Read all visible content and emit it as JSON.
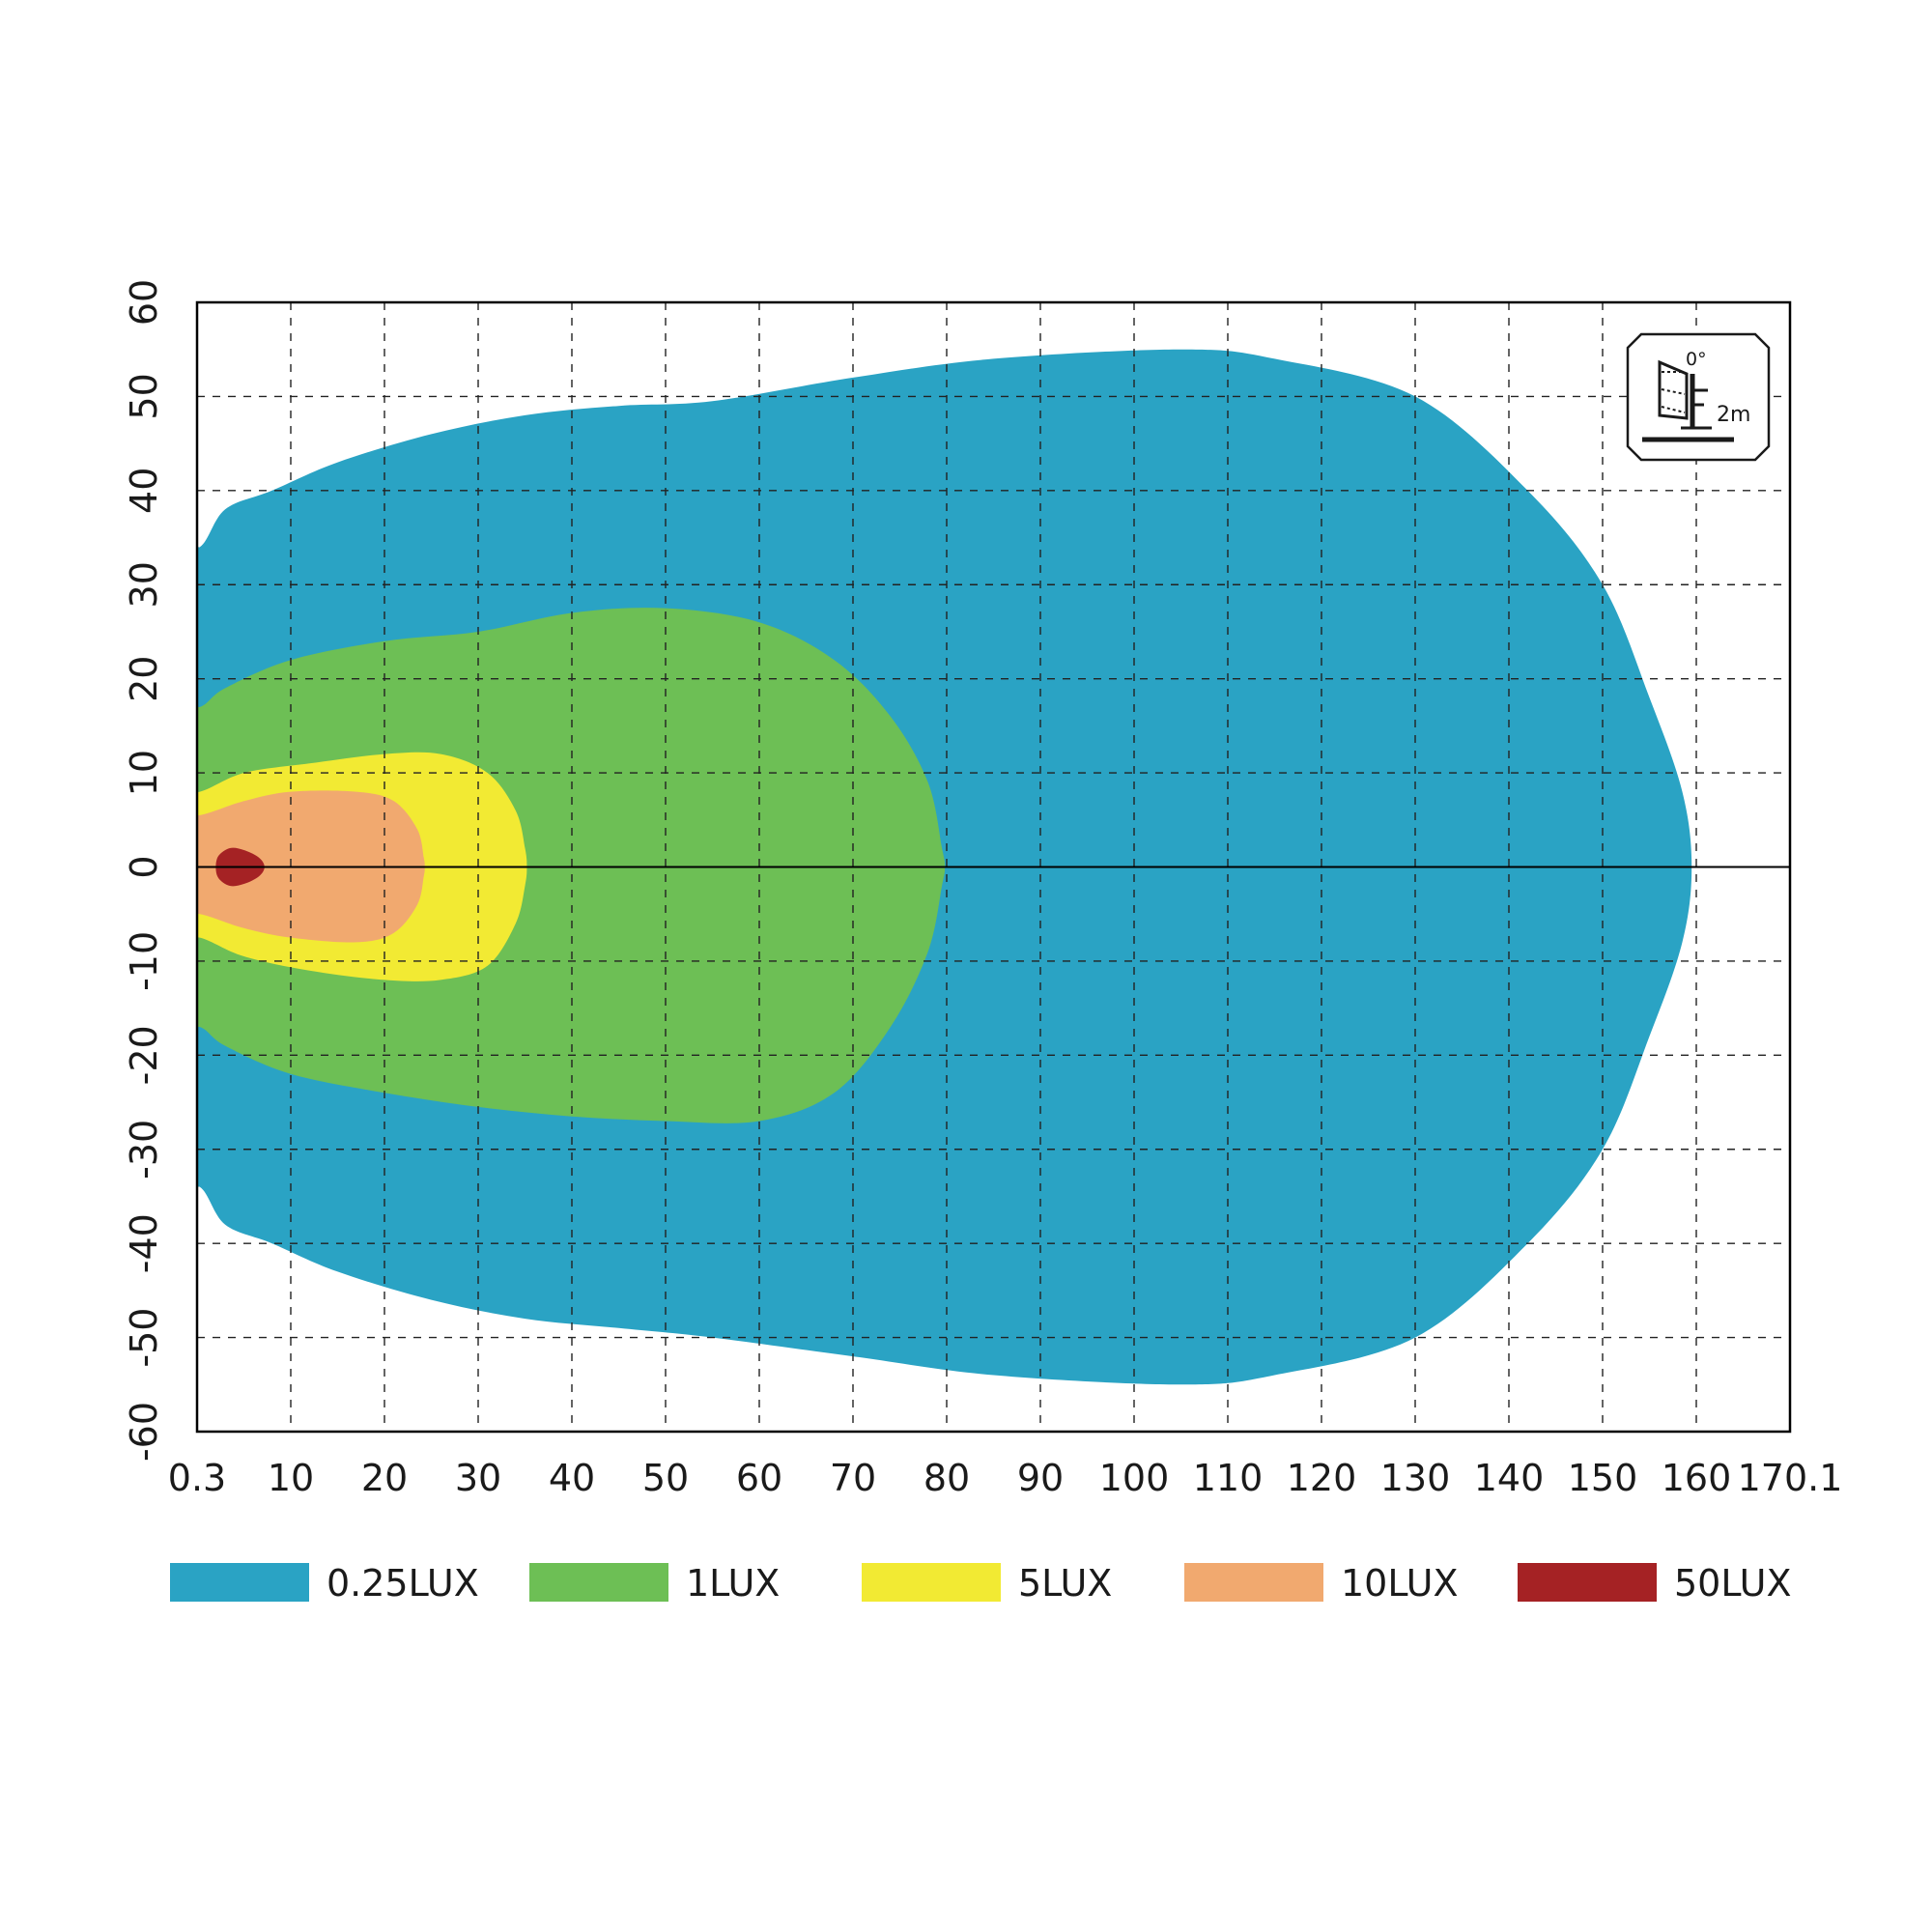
{
  "chart_data": {
    "type": "area",
    "title": "",
    "xlabel": "",
    "ylabel": "",
    "x_ticks": [
      "0.3",
      "10",
      "20",
      "30",
      "40",
      "50",
      "60",
      "70",
      "80",
      "90",
      "100",
      "110",
      "120",
      "130",
      "140",
      "150",
      "160",
      "170.1"
    ],
    "y_ticks": [
      "60",
      "50",
      "40",
      "30",
      "20",
      "10",
      "0",
      "-10",
      "-20",
      "-30",
      "-40",
      "-50",
      "-60"
    ],
    "xlim": [
      0.3,
      170.1
    ],
    "ylim": [
      -60,
      60
    ],
    "grid": true,
    "legend_position": "bottom",
    "series": [
      {
        "name": "0.25LUX",
        "color": "#2aa3c4",
        "upper": [
          [
            0.3,
            34
          ],
          [
            3,
            38
          ],
          [
            8,
            40
          ],
          [
            15,
            43
          ],
          [
            25,
            46
          ],
          [
            35,
            48
          ],
          [
            45,
            49
          ],
          [
            55,
            49.5
          ],
          [
            70,
            52
          ],
          [
            85,
            54
          ],
          [
            105,
            55
          ],
          [
            115,
            54
          ],
          [
            130,
            50
          ],
          [
            142,
            40
          ],
          [
            150,
            30
          ],
          [
            155,
            18
          ],
          [
            158.5,
            8
          ],
          [
            159.5,
            0
          ]
        ],
        "lower": [
          [
            0.3,
            -34
          ],
          [
            3,
            -38
          ],
          [
            8,
            -40
          ],
          [
            15,
            -43
          ],
          [
            25,
            -46
          ],
          [
            35,
            -48
          ],
          [
            45,
            -49
          ],
          [
            55,
            -50
          ],
          [
            70,
            -52
          ],
          [
            85,
            -54
          ],
          [
            105,
            -55
          ],
          [
            115,
            -54
          ],
          [
            130,
            -50
          ],
          [
            142,
            -40
          ],
          [
            150,
            -30
          ],
          [
            155,
            -18
          ],
          [
            158.5,
            -8
          ],
          [
            159.5,
            0
          ]
        ]
      },
      {
        "name": "1LUX",
        "color": "#6dbf55",
        "upper": [
          [
            0.3,
            17
          ],
          [
            3,
            19
          ],
          [
            10,
            22
          ],
          [
            20,
            24
          ],
          [
            30,
            25
          ],
          [
            40,
            27
          ],
          [
            50,
            27.5
          ],
          [
            60,
            26
          ],
          [
            68,
            22
          ],
          [
            74,
            16
          ],
          [
            78,
            9
          ],
          [
            79.5,
            2
          ],
          [
            79.8,
            0
          ]
        ],
        "lower": [
          [
            0.3,
            -17
          ],
          [
            3,
            -19
          ],
          [
            10,
            -22
          ],
          [
            20,
            -24
          ],
          [
            30,
            -25.5
          ],
          [
            40,
            -26.5
          ],
          [
            50,
            -27
          ],
          [
            60,
            -27
          ],
          [
            68,
            -24
          ],
          [
            74,
            -17
          ],
          [
            78,
            -9
          ],
          [
            79.5,
            -2
          ],
          [
            79.8,
            0
          ]
        ]
      },
      {
        "name": "5LUX",
        "color": "#f2ea33",
        "upper": [
          [
            0.3,
            8
          ],
          [
            5,
            10
          ],
          [
            12,
            11
          ],
          [
            20,
            12
          ],
          [
            26,
            12
          ],
          [
            31,
            10
          ],
          [
            34,
            6
          ],
          [
            35,
            2
          ],
          [
            35.2,
            0
          ]
        ],
        "lower": [
          [
            0.3,
            -7.5
          ],
          [
            5,
            -9.5
          ],
          [
            12,
            -11
          ],
          [
            20,
            -12
          ],
          [
            26,
            -12
          ],
          [
            31,
            -10.5
          ],
          [
            34,
            -6
          ],
          [
            35,
            -2
          ],
          [
            35.2,
            0
          ]
        ]
      },
      {
        "name": "10LUX",
        "color": "#f1a96f",
        "upper": [
          [
            0.3,
            5.5
          ],
          [
            5,
            7
          ],
          [
            10,
            8
          ],
          [
            17,
            8
          ],
          [
            21,
            7
          ],
          [
            23.5,
            4
          ],
          [
            24.2,
            1
          ],
          [
            24.3,
            0
          ]
        ],
        "lower": [
          [
            0.3,
            -5
          ],
          [
            5,
            -6.5
          ],
          [
            10,
            -7.5
          ],
          [
            17,
            -8
          ],
          [
            21,
            -7
          ],
          [
            23.5,
            -4
          ],
          [
            24.2,
            -1
          ],
          [
            24.3,
            0
          ]
        ]
      },
      {
        "name": "50LUX",
        "color": "#a52224",
        "upper": [
          [
            2,
            0
          ],
          [
            2.3,
            1.2
          ],
          [
            3.5,
            2
          ],
          [
            5,
            1.8
          ],
          [
            6.6,
            1
          ],
          [
            7.2,
            0
          ]
        ],
        "lower": [
          [
            2,
            0
          ],
          [
            2.3,
            -1.2
          ],
          [
            3.5,
            -2
          ],
          [
            5,
            -1.8
          ],
          [
            6.6,
            -1
          ],
          [
            7.2,
            0
          ]
        ]
      }
    ],
    "badge": {
      "angle_label": "0°",
      "height_label": "2m"
    }
  }
}
